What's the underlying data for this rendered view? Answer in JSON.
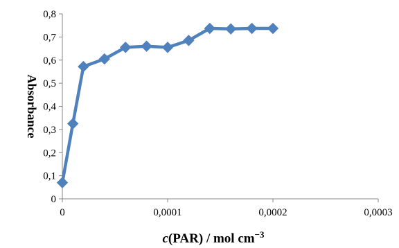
{
  "chart_data": {
    "type": "line",
    "title": "",
    "xlabel": "c(PAR) / mol cm−3",
    "xlabel_parts": {
      "italic": "c",
      "rest": "(PAR) / mol cm",
      "sup": "−3"
    },
    "ylabel": "Absorbance",
    "xlim": [
      0,
      0.0003
    ],
    "ylim": [
      0,
      0.8
    ],
    "x_ticks": [
      "0",
      "0,0001",
      "0,0002",
      "0,0003"
    ],
    "y_ticks": [
      "0",
      "0,1",
      "0,2",
      "0,3",
      "0,4",
      "0,5",
      "0,6",
      "0,7",
      "0,8"
    ],
    "grid": false,
    "legend": "none",
    "series": [
      {
        "color": "#4F81BD",
        "marker": "diamond",
        "x": [
          0.0,
          1e-05,
          2e-05,
          4e-05,
          6e-05,
          8e-05,
          0.0001,
          0.00012,
          0.00014,
          0.00016,
          0.00018,
          0.0002
        ],
        "y": [
          0.07,
          0.325,
          0.572,
          0.605,
          0.655,
          0.66,
          0.655,
          0.685,
          0.737,
          0.735,
          0.737,
          0.737
        ]
      }
    ]
  }
}
